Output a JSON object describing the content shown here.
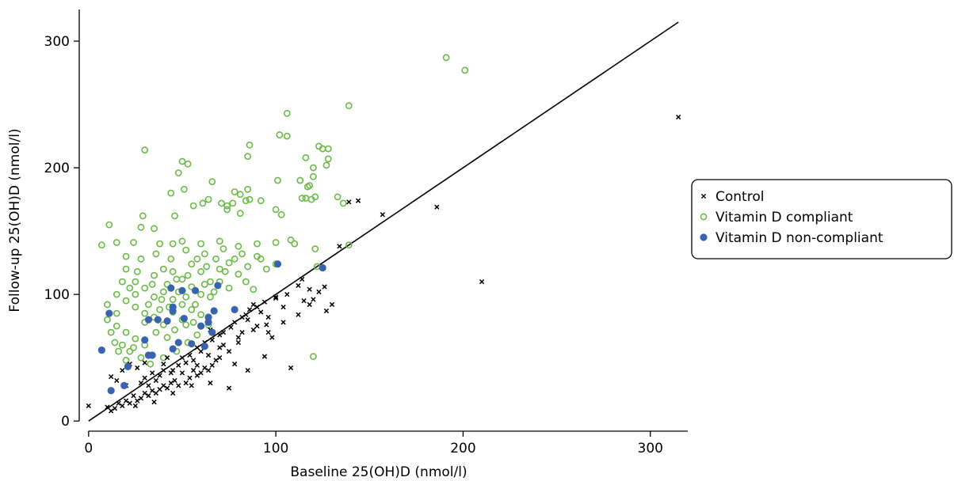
{
  "chart_data": {
    "type": "scatter",
    "xlabel": "Baseline 25(OH)D (nmol/l)",
    "ylabel": "Follow-up 25(OH)D (nmol/l)",
    "xlim": [
      -5,
      320
    ],
    "ylim": [
      -8,
      325
    ],
    "x_ticks": [
      0,
      100,
      200,
      300
    ],
    "y_ticks": [
      0,
      100,
      200,
      300
    ],
    "grid": false,
    "legend_position": "right",
    "reference_line": {
      "x": [
        0,
        315
      ],
      "y": [
        0,
        315
      ]
    },
    "colors": {
      "control": "#000000",
      "compliant": "#6abb45",
      "noncompliant": "#3a63ad"
    },
    "series": [
      {
        "name": "Control",
        "marker": "x",
        "points": [
          [
            315,
            240
          ],
          [
            210,
            110
          ],
          [
            186,
            169
          ],
          [
            157,
            163
          ],
          [
            144,
            174
          ],
          [
            139,
            173
          ],
          [
            134,
            138
          ],
          [
            127,
            87
          ],
          [
            126,
            106
          ],
          [
            123,
            102
          ],
          [
            118,
            104
          ],
          [
            118,
            92
          ],
          [
            115,
            95
          ],
          [
            112,
            107
          ],
          [
            108,
            42
          ],
          [
            104,
            90
          ],
          [
            100,
            97
          ],
          [
            96,
            70
          ],
          [
            94,
            51
          ],
          [
            90,
            75
          ],
          [
            85,
            80
          ],
          [
            82,
            70
          ],
          [
            80,
            62
          ],
          [
            78,
            45
          ],
          [
            75,
            55
          ],
          [
            72,
            60
          ],
          [
            70,
            50
          ],
          [
            68,
            48
          ],
          [
            66,
            44
          ],
          [
            64,
            40
          ],
          [
            62,
            42
          ],
          [
            60,
            38
          ],
          [
            58,
            36
          ],
          [
            56,
            40
          ],
          [
            54,
            34
          ],
          [
            52,
            30
          ],
          [
            50,
            38
          ],
          [
            48,
            28
          ],
          [
            46,
            32
          ],
          [
            44,
            30
          ],
          [
            42,
            26
          ],
          [
            40,
            28
          ],
          [
            38,
            25
          ],
          [
            36,
            22
          ],
          [
            34,
            24
          ],
          [
            32,
            20
          ],
          [
            30,
            22
          ],
          [
            28,
            18
          ],
          [
            26,
            16
          ],
          [
            24,
            20
          ],
          [
            22,
            14
          ],
          [
            20,
            16
          ],
          [
            18,
            12
          ],
          [
            16,
            14
          ],
          [
            14,
            10
          ],
          [
            12,
            8
          ],
          [
            10,
            11
          ],
          [
            0,
            12
          ],
          [
            55,
            28
          ],
          [
            65,
            30
          ],
          [
            75,
            26
          ],
          [
            85,
            40
          ],
          [
            98,
            66
          ],
          [
            60,
            55
          ],
          [
            50,
            50
          ],
          [
            40,
            45
          ],
          [
            30,
            34
          ],
          [
            20,
            28
          ],
          [
            25,
            12
          ],
          [
            35,
            15
          ],
          [
            45,
            22
          ],
          [
            88,
            92
          ],
          [
            92,
            86
          ],
          [
            96,
            82
          ],
          [
            104,
            78
          ],
          [
            112,
            84
          ],
          [
            120,
            96
          ],
          [
            130,
            92
          ],
          [
            65,
            72
          ],
          [
            70,
            68
          ],
          [
            76,
            74
          ],
          [
            82,
            82
          ],
          [
            86,
            88
          ],
          [
            45,
            40
          ],
          [
            38,
            36
          ],
          [
            42,
            50
          ],
          [
            48,
            44
          ],
          [
            52,
            46
          ],
          [
            56,
            48
          ],
          [
            15,
            32
          ],
          [
            12,
            35
          ],
          [
            18,
            40
          ],
          [
            22,
            45
          ],
          [
            28,
            30
          ],
          [
            32,
            28
          ],
          [
            36,
            32
          ],
          [
            44,
            38
          ],
          [
            54,
            52
          ],
          [
            58,
            58
          ],
          [
            62,
            62
          ],
          [
            66,
            64
          ],
          [
            72,
            70
          ],
          [
            78,
            78
          ],
          [
            84,
            84
          ],
          [
            90,
            90
          ],
          [
            94,
            94
          ],
          [
            100,
            98
          ],
          [
            106,
            100
          ],
          [
            114,
            112
          ],
          [
            30,
            46
          ],
          [
            26,
            42
          ],
          [
            34,
            38
          ],
          [
            40,
            40
          ],
          [
            58,
            44
          ],
          [
            64,
            52
          ],
          [
            70,
            58
          ],
          [
            80,
            66
          ],
          [
            88,
            72
          ],
          [
            95,
            76
          ]
        ]
      },
      {
        "name": "Vitamin D compliant",
        "marker": "o",
        "points": [
          [
            191,
            287
          ],
          [
            201,
            277
          ],
          [
            139,
            249
          ],
          [
            106,
            243
          ],
          [
            102,
            226
          ],
          [
            106,
            225
          ],
          [
            30,
            214
          ],
          [
            86,
            218
          ],
          [
            85,
            209
          ],
          [
            125,
            215
          ],
          [
            123,
            217
          ],
          [
            128,
            215
          ],
          [
            116,
            208
          ],
          [
            128,
            207
          ],
          [
            120,
            200
          ],
          [
            127,
            202
          ],
          [
            53,
            203
          ],
          [
            50,
            205
          ],
          [
            48,
            196
          ],
          [
            66,
            189
          ],
          [
            101,
            190
          ],
          [
            113,
            190
          ],
          [
            118,
            186
          ],
          [
            117,
            185
          ],
          [
            119,
            175
          ],
          [
            120,
            193
          ],
          [
            85,
            183
          ],
          [
            78,
            181
          ],
          [
            81,
            179
          ],
          [
            44,
            180
          ],
          [
            51,
            183
          ],
          [
            61,
            172
          ],
          [
            64,
            175
          ],
          [
            56,
            170
          ],
          [
            71,
            172
          ],
          [
            77,
            172
          ],
          [
            74,
            170
          ],
          [
            84,
            174
          ],
          [
            86,
            175
          ],
          [
            92,
            174
          ],
          [
            74,
            167
          ],
          [
            81,
            164
          ],
          [
            100,
            167
          ],
          [
            103,
            163
          ],
          [
            114,
            176
          ],
          [
            116,
            176
          ],
          [
            121,
            177
          ],
          [
            133,
            177
          ],
          [
            136,
            172
          ],
          [
            46,
            162
          ],
          [
            29,
            162
          ],
          [
            11,
            155
          ],
          [
            28,
            153
          ],
          [
            35,
            152
          ],
          [
            24,
            141
          ],
          [
            15,
            141
          ],
          [
            7,
            139
          ],
          [
            38,
            140
          ],
          [
            45,
            140
          ],
          [
            50,
            142
          ],
          [
            60,
            140
          ],
          [
            70,
            142
          ],
          [
            80,
            138
          ],
          [
            90,
            140
          ],
          [
            100,
            141
          ],
          [
            108,
            143
          ],
          [
            110,
            140
          ],
          [
            121,
            136
          ],
          [
            139,
            139
          ],
          [
            122,
            122
          ],
          [
            120,
            51
          ],
          [
            20,
            120
          ],
          [
            25,
            110
          ],
          [
            30,
            105
          ],
          [
            35,
            115
          ],
          [
            40,
            120
          ],
          [
            45,
            118
          ],
          [
            50,
            112
          ],
          [
            55,
            124
          ],
          [
            60,
            118
          ],
          [
            65,
            110
          ],
          [
            70,
            120
          ],
          [
            75,
            125
          ],
          [
            80,
            116
          ],
          [
            85,
            122
          ],
          [
            90,
            130
          ],
          [
            95,
            120
          ],
          [
            15,
            100
          ],
          [
            20,
            95
          ],
          [
            25,
            90
          ],
          [
            30,
            85
          ],
          [
            35,
            98
          ],
          [
            40,
            102
          ],
          [
            45,
            96
          ],
          [
            50,
            92
          ],
          [
            55,
            106
          ],
          [
            60,
            100
          ],
          [
            65,
            98
          ],
          [
            70,
            110
          ],
          [
            75,
            105
          ],
          [
            10,
            80
          ],
          [
            15,
            75
          ],
          [
            20,
            70
          ],
          [
            25,
            65
          ],
          [
            30,
            78
          ],
          [
            35,
            82
          ],
          [
            40,
            76
          ],
          [
            45,
            86
          ],
          [
            50,
            80
          ],
          [
            55,
            88
          ],
          [
            60,
            84
          ],
          [
            10,
            92
          ],
          [
            12,
            70
          ],
          [
            18,
            60
          ],
          [
            22,
            55
          ],
          [
            28,
            50
          ],
          [
            33,
            45
          ],
          [
            40,
            50
          ],
          [
            47,
            55
          ],
          [
            53,
            62
          ],
          [
            58,
            68
          ],
          [
            64,
            76
          ],
          [
            20,
            130
          ],
          [
            28,
            128
          ],
          [
            36,
            132
          ],
          [
            44,
            128
          ],
          [
            52,
            135
          ],
          [
            62,
            132
          ],
          [
            72,
            136
          ],
          [
            82,
            132
          ],
          [
            92,
            128
          ],
          [
            100,
            124
          ],
          [
            25,
            100
          ],
          [
            32,
            92
          ],
          [
            38,
            88
          ],
          [
            42,
            108
          ],
          [
            48,
            102
          ],
          [
            53,
            115
          ],
          [
            58,
            128
          ],
          [
            63,
            122
          ],
          [
            68,
            128
          ],
          [
            73,
            118
          ],
          [
            78,
            128
          ],
          [
            84,
            110
          ],
          [
            88,
            104
          ],
          [
            15,
            85
          ],
          [
            18,
            110
          ],
          [
            22,
            105
          ],
          [
            26,
            118
          ],
          [
            34,
            108
          ],
          [
            39,
            96
          ],
          [
            43,
            90
          ],
          [
            47,
            112
          ],
          [
            52,
            98
          ],
          [
            57,
            92
          ],
          [
            62,
            108
          ],
          [
            67,
            102
          ],
          [
            14,
            62
          ],
          [
            16,
            55
          ],
          [
            20,
            48
          ],
          [
            24,
            58
          ],
          [
            30,
            60
          ],
          [
            36,
            70
          ],
          [
            42,
            66
          ],
          [
            46,
            72
          ],
          [
            52,
            76
          ],
          [
            56,
            78
          ]
        ]
      },
      {
        "name": "Vitamin D non-compliant",
        "marker": "dot",
        "points": [
          [
            7,
            56
          ],
          [
            11,
            85
          ],
          [
            12,
            24
          ],
          [
            19,
            28
          ],
          [
            21,
            43
          ],
          [
            30,
            64
          ],
          [
            32,
            80
          ],
          [
            32,
            52
          ],
          [
            34,
            52
          ],
          [
            37,
            80
          ],
          [
            42,
            79
          ],
          [
            44,
            105
          ],
          [
            45,
            90
          ],
          [
            45,
            87
          ],
          [
            45,
            57
          ],
          [
            48,
            62
          ],
          [
            50,
            103
          ],
          [
            51,
            81
          ],
          [
            55,
            61
          ],
          [
            57,
            103
          ],
          [
            60,
            75
          ],
          [
            62,
            59
          ],
          [
            64,
            78
          ],
          [
            64,
            82
          ],
          [
            66,
            70
          ],
          [
            67,
            87
          ],
          [
            69,
            107
          ],
          [
            78,
            88
          ],
          [
            101,
            124
          ],
          [
            125,
            121
          ]
        ]
      }
    ]
  }
}
